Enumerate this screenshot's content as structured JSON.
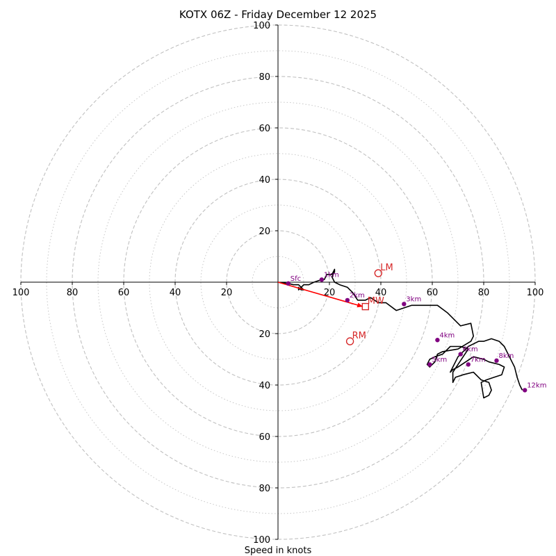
{
  "chart_data": {
    "type": "line",
    "title": "KOTX 06Z - Friday December 12 2025",
    "xlabel": "Speed in knots",
    "ylabel": "",
    "xlim": [
      -100,
      100
    ],
    "ylim": [
      -100,
      100
    ],
    "grid": true,
    "rings_dashed": [
      20,
      40,
      60,
      80,
      100
    ],
    "rings_dotted": [
      10,
      30,
      50,
      70,
      90
    ],
    "x_tick_labels": [
      "100",
      "80",
      "60",
      "40",
      "20",
      "20",
      "40",
      "60",
      "80",
      "100"
    ],
    "x_tick_values": [
      -100,
      -80,
      -60,
      -40,
      -20,
      20,
      40,
      60,
      80,
      100
    ],
    "y_tick_labels": [
      "100",
      "80",
      "60",
      "40",
      "20",
      "20",
      "40",
      "60",
      "80",
      "100"
    ],
    "y_tick_values": [
      100,
      80,
      60,
      40,
      20,
      -20,
      -40,
      -60,
      -80,
      -100
    ],
    "hodograph_trace": {
      "name": "wind profile",
      "color": "#000000",
      "x": [
        0,
        4,
        6,
        8,
        9,
        10,
        9,
        8,
        8,
        9,
        10,
        12,
        14,
        17,
        18,
        19,
        21,
        22,
        22,
        21,
        22,
        24,
        27,
        29,
        31,
        34,
        36,
        39,
        42,
        46,
        49,
        52,
        55,
        58,
        62,
        66,
        71,
        75,
        76,
        75,
        70,
        64,
        62,
        61,
        59,
        58,
        59,
        61,
        64,
        67,
        71,
        74,
        72,
        70,
        68,
        68,
        69,
        72,
        76,
        79,
        82,
        83,
        82,
        80,
        79,
        81,
        84,
        87,
        88,
        86,
        82,
        80,
        76,
        73,
        70,
        68,
        67,
        68,
        70,
        72,
        74,
        76,
        78,
        80,
        83,
        86,
        88,
        90,
        92,
        93,
        94,
        95
      ],
      "y": [
        0,
        -0.5,
        -1,
        -1,
        -2,
        -3,
        -3,
        -2,
        -3,
        -2,
        -1,
        -1,
        0,
        1,
        1,
        3,
        3,
        5,
        4,
        2,
        0,
        -1,
        -2,
        -4,
        -7,
        -7,
        -6,
        -8,
        -8,
        -11,
        -10,
        -9,
        -9,
        -9,
        -9,
        -12,
        -17,
        -16,
        -21,
        -23,
        -26,
        -27,
        -28,
        -31,
        -33,
        -32,
        -30,
        -29,
        -28,
        -25,
        -25,
        -26,
        -29,
        -32,
        -35,
        -39,
        -37,
        -36,
        -35,
        -38,
        -39,
        -42,
        -44,
        -45,
        -39,
        -38,
        -37,
        -36,
        -33,
        -32,
        -31,
        -30,
        -29,
        -31,
        -33,
        -34,
        -35,
        -33,
        -29,
        -27,
        -25,
        -24,
        -23,
        -23,
        -22,
        -23,
        -25,
        -29,
        -33,
        -37,
        -40,
        -42
      ]
    },
    "height_markers": [
      {
        "label": "Sfc",
        "x": 4,
        "y": -0.5
      },
      {
        "label": "1km",
        "x": 17,
        "y": 1
      },
      {
        "label": "2km",
        "x": 27,
        "y": -7
      },
      {
        "label": "3km",
        "x": 49,
        "y": -8.5
      },
      {
        "label": "4km",
        "x": 62,
        "y": -22.5
      },
      {
        "label": "5km",
        "x": 59,
        "y": -32
      },
      {
        "label": "6km",
        "x": 71,
        "y": -28
      },
      {
        "label": "7km",
        "x": 74,
        "y": -32
      },
      {
        "label": "8km",
        "x": 85,
        "y": -30.5
      },
      {
        "label": "12km",
        "x": 96,
        "y": -42
      }
    ],
    "storm_motion": [
      {
        "label": "LM",
        "x": 39,
        "y": 3.5,
        "marker": "circle"
      },
      {
        "label": "MW",
        "x": 34,
        "y": -9.5,
        "marker": "square"
      },
      {
        "label": "RM",
        "x": 28,
        "y": -23,
        "marker": "circle"
      }
    ],
    "motion_vector": {
      "from": [
        0,
        0
      ],
      "to": [
        33,
        -9.5
      ],
      "color": "#ff0000"
    },
    "colors": {
      "trace": "#000000",
      "markers": "#800080",
      "storm_motion": "#d62728",
      "vector": "#ff0000",
      "grid": "#c0c0c0",
      "axes": "#000000"
    }
  }
}
